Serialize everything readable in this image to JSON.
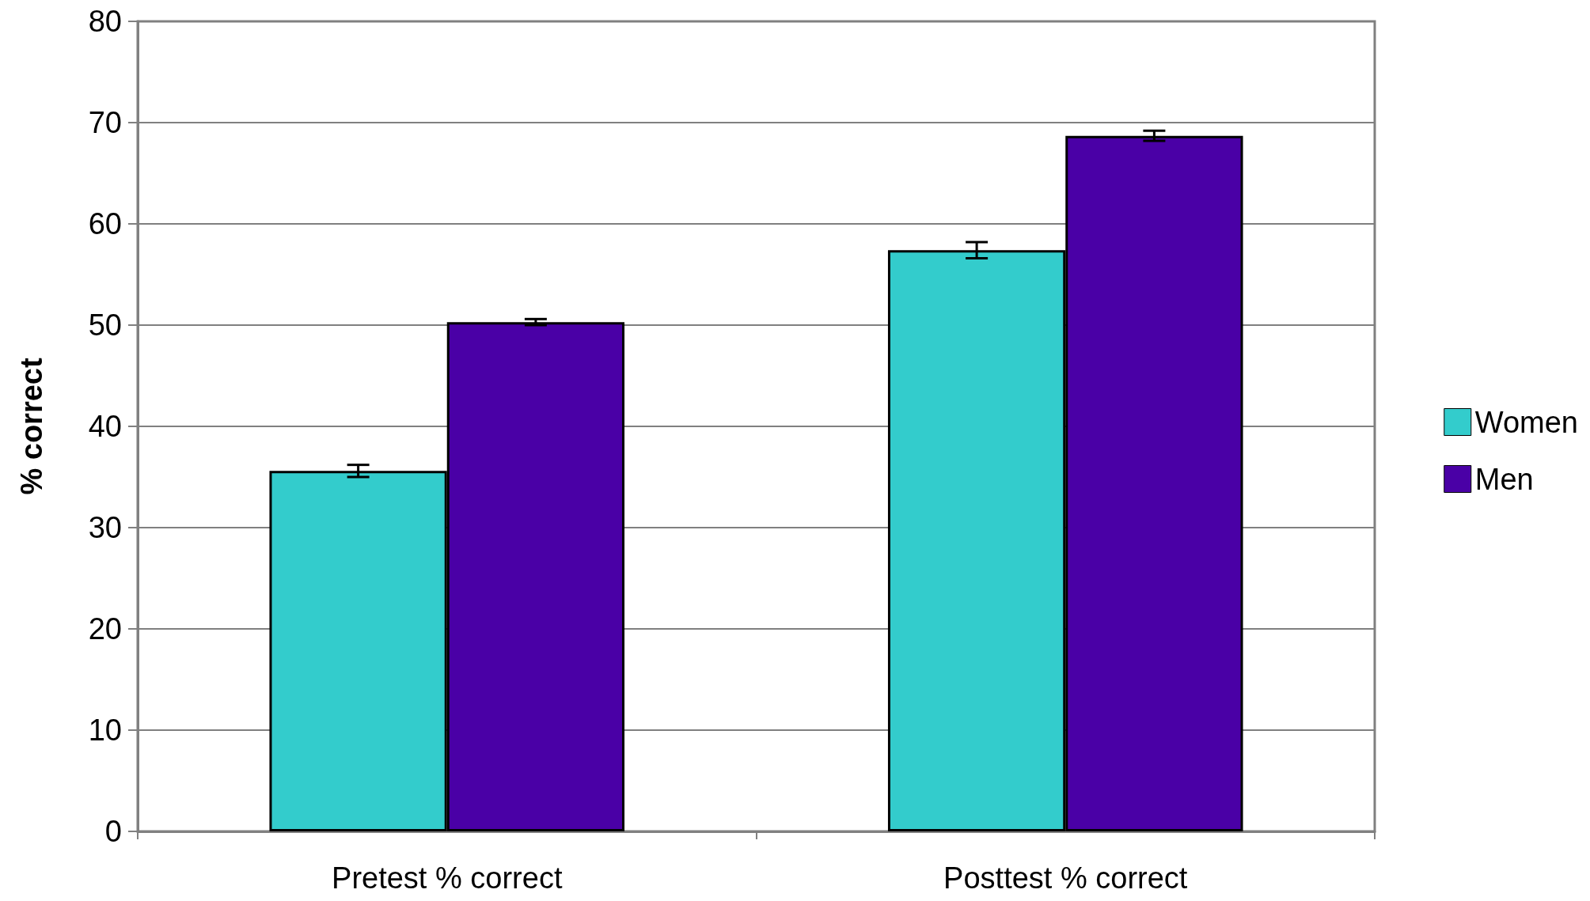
{
  "chart_data": {
    "type": "bar",
    "ylabel": "% correct",
    "categories": [
      "Pretest % correct",
      "Posttest % correct"
    ],
    "series": [
      {
        "name": "Women",
        "color": "#33cccc",
        "values": [
          35.6,
          57.4
        ],
        "errors": [
          0.6,
          0.8
        ]
      },
      {
        "name": "Men",
        "color": "#4a00a6",
        "values": [
          50.3,
          68.7
        ],
        "errors": [
          0.3,
          0.5
        ]
      }
    ],
    "ylim": [
      0,
      80
    ],
    "yticks": [
      0,
      10,
      20,
      30,
      40,
      50,
      60,
      70,
      80
    ],
    "grid": "y",
    "legend": "right"
  }
}
